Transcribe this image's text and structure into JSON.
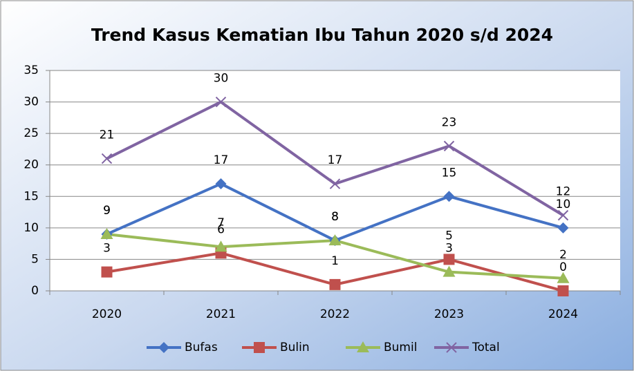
{
  "chart_data": {
    "type": "line",
    "title": "Trend Kasus Kematian Ibu Tahun 2020 s/d 2024",
    "categories": [
      "2020",
      "2021",
      "2022",
      "2023",
      "2024"
    ],
    "series": [
      {
        "name": "Bufas",
        "color": "#4472c4",
        "marker": "diamond",
        "values": [
          9,
          17,
          8,
          15,
          10
        ]
      },
      {
        "name": "Bulin",
        "color": "#c0504d",
        "marker": "square",
        "values": [
          3,
          6,
          1,
          5,
          0
        ]
      },
      {
        "name": "Bumil",
        "color": "#9bbb59",
        "marker": "triangle",
        "values": [
          9,
          7,
          8,
          3,
          2
        ]
      },
      {
        "name": "Total",
        "color": "#8064a2",
        "marker": "x",
        "values": [
          21,
          30,
          17,
          23,
          12
        ]
      }
    ],
    "ylim": [
      0,
      35
    ],
    "yticks": [
      0,
      5,
      10,
      15,
      20,
      25,
      30,
      35
    ],
    "grid": true,
    "legend": "bottom"
  }
}
